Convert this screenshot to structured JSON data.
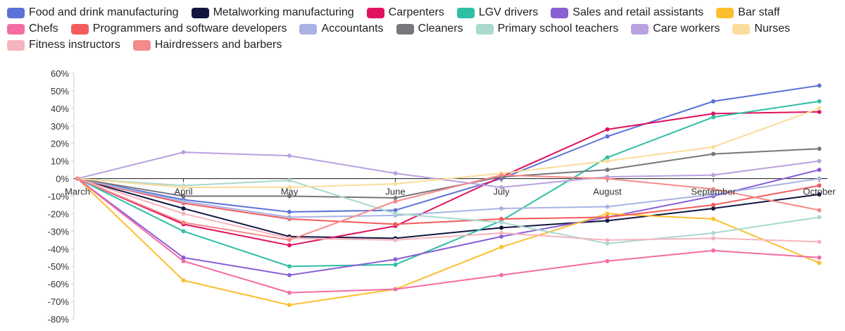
{
  "chart_data": {
    "type": "line",
    "categories": [
      "March",
      "April",
      "May",
      "June",
      "July",
      "August",
      "September",
      "October"
    ],
    "y_ticks": [
      "60%",
      "50%",
      "40%",
      "30%",
      "20%",
      "10%",
      "0%",
      "-10%",
      "-20%",
      "-30%",
      "-40%",
      "-50%",
      "-60%",
      "-70%",
      "-80%"
    ],
    "ylim": [
      -80,
      60
    ],
    "y_unit": "%",
    "grid": false,
    "legend_position": "top",
    "series": [
      {
        "name": "Food and drink manufacturing",
        "color": "#5b73d6",
        "values": [
          0,
          -12,
          -19,
          -18,
          0,
          24,
          44,
          53
        ]
      },
      {
        "name": "Metalworking manufacturing",
        "color": "#12163f",
        "values": [
          0,
          -17,
          -33,
          -34,
          -28,
          -24,
          -17,
          -9
        ]
      },
      {
        "name": "Carpenters",
        "color": "#e0115f",
        "values": [
          0,
          -26,
          -38,
          -27,
          1,
          28,
          37,
          38
        ]
      },
      {
        "name": "LGV drivers",
        "color": "#2ebfa5",
        "values": [
          0,
          -30,
          -50,
          -49,
          -24,
          12,
          35,
          44
        ]
      },
      {
        "name": "Sales and retail assistants",
        "color": "#8a5fd6",
        "values": [
          0,
          -45,
          -55,
          -46,
          -33,
          -22,
          -10,
          5
        ]
      },
      {
        "name": "Bar staff",
        "color": "#fbbf2e",
        "values": [
          0,
          -58,
          -72,
          -63,
          -39,
          -20,
          -23,
          -48
        ]
      },
      {
        "name": "Chefs",
        "color": "#f56ca4",
        "values": [
          0,
          -47,
          -65,
          -63,
          -55,
          -47,
          -41,
          -45
        ]
      },
      {
        "name": "Programmers and software developers",
        "color": "#f25c5c",
        "values": [
          0,
          -14,
          -23,
          -26,
          -23,
          -22,
          -15,
          -4
        ]
      },
      {
        "name": "Accountants",
        "color": "#a8b3e3",
        "values": [
          0,
          -13,
          -22,
          -21,
          -17,
          -16,
          -9,
          0
        ]
      },
      {
        "name": "Cleaners",
        "color": "#77767c",
        "values": [
          0,
          -10,
          -10,
          -11,
          1,
          5,
          14,
          17
        ]
      },
      {
        "name": "Primary school teachers",
        "color": "#a9d9cf",
        "values": [
          0,
          -4,
          -1,
          -20,
          -25,
          -37,
          -31,
          -22
        ]
      },
      {
        "name": "Care workers",
        "color": "#b9a2e0",
        "values": [
          0,
          15,
          13,
          3,
          -5,
          1,
          2,
          10
        ]
      },
      {
        "name": "Nurses",
        "color": "#fcdc9a",
        "values": [
          0,
          -5,
          -5,
          -3,
          3,
          10,
          18,
          40
        ]
      },
      {
        "name": "Fitness instructors",
        "color": "#f7b3bd",
        "values": [
          0,
          -20,
          -34,
          -35,
          -31,
          -35,
          -34,
          -36
        ]
      },
      {
        "name": "Hairdressers and barbers",
        "color": "#f48a8a",
        "values": [
          0,
          -25,
          -35,
          -13,
          2,
          0,
          -6,
          -18
        ]
      }
    ]
  }
}
